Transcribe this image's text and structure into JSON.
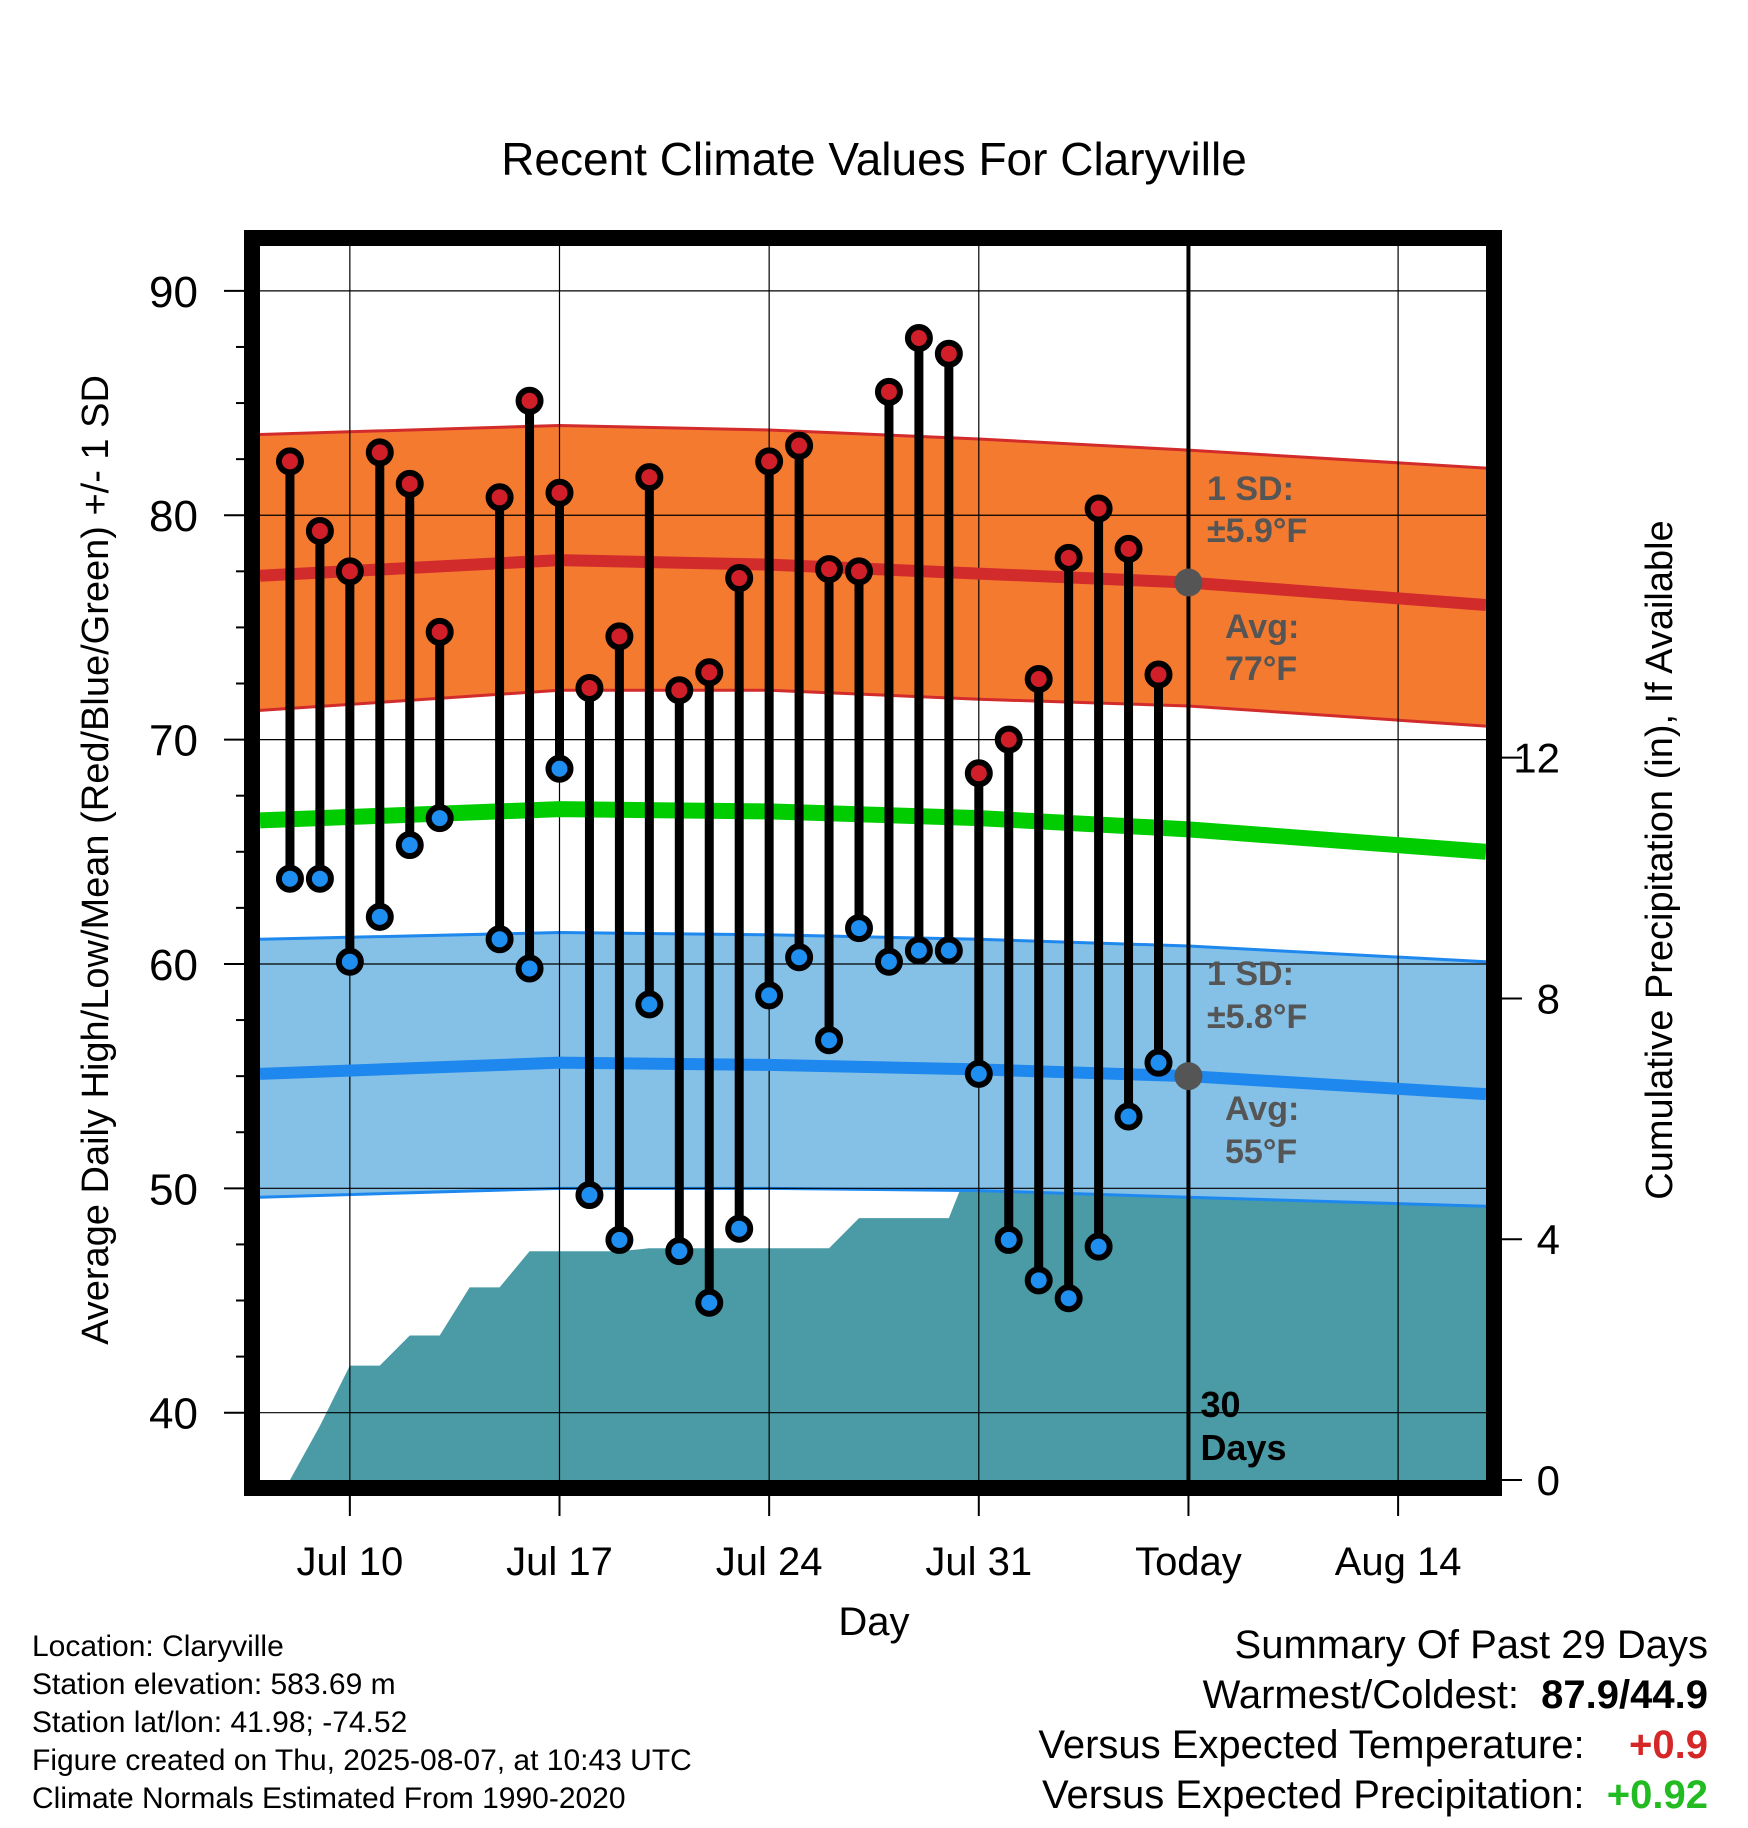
{
  "chart_data": {
    "type": "line",
    "title": "Recent Climate Values For Claryville",
    "xlabel": "Day",
    "ylabel": "Average Daily High/Low/Mean (Red/Blue/Green) +/- 1 SD",
    "y2label": "Cumulative Precipitation (in), If Available",
    "x_ticks": [
      "Jul 10",
      "Jul 17",
      "Jul 24",
      "Jul 31",
      "Today",
      "Aug 14"
    ],
    "y_ticks": [
      40,
      50,
      60,
      70,
      80,
      90
    ],
    "y2_ticks": [
      0,
      4,
      8,
      12
    ],
    "ylim": [
      37,
      92
    ],
    "y2lim": [
      0,
      20.5
    ],
    "x_start": "Jul 7",
    "today": "Aug 7",
    "observed": {
      "dates": [
        "Jul 8",
        "Jul 9",
        "Jul 10",
        "Jul 11",
        "Jul 12",
        "Jul 13",
        "Jul 15",
        "Jul 16",
        "Jul 17",
        "Jul 18",
        "Jul 19",
        "Jul 20",
        "Jul 21",
        "Jul 22",
        "Jul 23",
        "Jul 24",
        "Jul 25",
        "Jul 26",
        "Jul 27",
        "Jul 28",
        "Jul 29",
        "Jul 30",
        "Jul 31",
        "Aug 1",
        "Aug 2",
        "Aug 3",
        "Aug 4",
        "Aug 5",
        "Aug 6"
      ],
      "highs": [
        82.4,
        79.3,
        77.5,
        82.8,
        81.4,
        74.8,
        80.8,
        85.1,
        81.0,
        72.3,
        74.6,
        81.7,
        72.2,
        73.0,
        77.2,
        82.4,
        83.1,
        77.6,
        77.5,
        85.5,
        87.9,
        87.2,
        68.5,
        70.0,
        72.7,
        78.1,
        80.3,
        78.5,
        72.9
      ],
      "lows": [
        63.8,
        63.8,
        60.1,
        62.1,
        65.3,
        66.5,
        61.1,
        59.8,
        68.7,
        49.7,
        47.7,
        58.2,
        47.2,
        44.9,
        48.2,
        58.6,
        60.3,
        56.6,
        61.6,
        60.1,
        60.6,
        60.6,
        55.1,
        47.7,
        45.9,
        45.1,
        47.4,
        53.2,
        55.6
      ]
    },
    "normal_high": {
      "x": [
        "Jul 7",
        "Jul 17",
        "Jul 24",
        "Jul 31",
        "Aug 7",
        "Aug 17"
      ],
      "avg": [
        77.3,
        78.0,
        77.8,
        77.4,
        77.0,
        76.0
      ],
      "plus_1sd": [
        83.6,
        84.0,
        83.8,
        83.4,
        82.9,
        82.1
      ],
      "minus_1sd": [
        71.3,
        72.2,
        72.2,
        71.8,
        71.5,
        70.6
      ],
      "sd_label": "1 SD:",
      "sd_value": "±5.9°F",
      "avg_label": "Avg:",
      "avg_value": "77°F",
      "color": "#f47a30"
    },
    "normal_mean": {
      "x": [
        "Jul 7",
        "Jul 17",
        "Jul 24",
        "Jul 31",
        "Aug 7",
        "Aug 17"
      ],
      "avg": [
        66.4,
        66.9,
        66.8,
        66.5,
        66.0,
        65.0
      ],
      "color": "#00cc00"
    },
    "normal_low": {
      "x": [
        "Jul 7",
        "Jul 17",
        "Jul 24",
        "Jul 31",
        "Aug 7",
        "Aug 17"
      ],
      "avg": [
        55.1,
        55.6,
        55.5,
        55.3,
        55.0,
        54.2
      ],
      "plus_1sd": [
        61.1,
        61.4,
        61.3,
        61.1,
        60.8,
        60.1
      ],
      "minus_1sd": [
        49.6,
        50.0,
        50.0,
        49.9,
        49.6,
        49.2
      ],
      "sd_label": "1 SD:",
      "sd_value": "±5.8°F",
      "avg_label": "Avg:",
      "avg_value": "55°F",
      "color": "#85c1e6"
    },
    "precipitation": {
      "dates": [
        "Jul 8",
        "Jul 9",
        "Jul 10",
        "Jul 11",
        "Jul 12",
        "Jul 13",
        "Jul 14",
        "Jul 15",
        "Jul 16",
        "Jul 17",
        "Jul 18",
        "Jul 19",
        "Jul 20",
        "Jul 21",
        "Jul 22",
        "Jul 23",
        "Jul 24",
        "Jul 25",
        "Jul 26",
        "Jul 27",
        "Jul 28",
        "Jul 29",
        "Jul 30",
        "Jul 31",
        "Aug 1",
        "Aug 2",
        "Aug 3",
        "Aug 4",
        "Aug 5",
        "Aug 6",
        "Aug 7",
        "Aug 17"
      ],
      "cumulative": [
        0,
        0.9,
        1.9,
        1.9,
        2.4,
        2.4,
        3.2,
        3.2,
        3.8,
        3.8,
        3.8,
        3.8,
        3.85,
        3.85,
        3.85,
        3.85,
        3.85,
        3.85,
        3.85,
        4.35,
        4.35,
        4.35,
        4.35,
        5.6,
        5.6,
        5.6,
        5.6,
        5.6,
        5.6,
        5.6,
        5.6,
        5.6
      ],
      "color": "#4a9ba5"
    },
    "today_label_line1": "30",
    "today_label_line2": "Days"
  },
  "info": {
    "location": "Location: Claryville",
    "elevation": "Station elevation: 583.69 m",
    "latlon": "Station lat/lon: 41.98; -74.52",
    "created": "Figure created on Thu, 2025-08-07, at 10:43 UTC",
    "normals": "Climate Normals Estimated From 1990-2020"
  },
  "summary": {
    "title": "Summary Of Past 29 Days",
    "warm_cold_label": "Warmest/Coldest:",
    "warm_cold_value": "87.9/44.9",
    "temp_label": "Versus Expected Temperature:",
    "temp_value": "+0.9",
    "temp_color": "#d62728",
    "precip_label": "Versus Expected Precipitation:",
    "precip_value": "+0.92",
    "precip_color": "#22bb22"
  }
}
